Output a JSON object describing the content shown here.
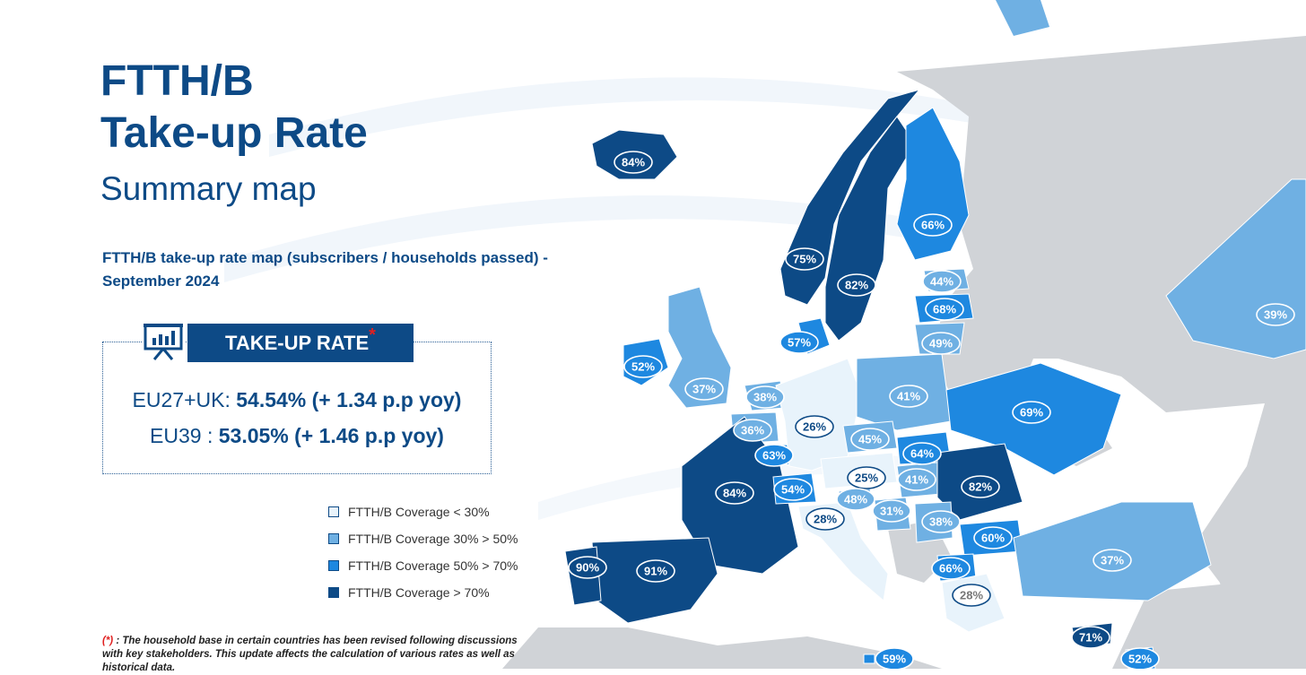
{
  "title_line1": "FTTH/B",
  "title_line2": "Take-up Rate",
  "subtitle": "Summary map",
  "description": "FTTH/B take-up rate map (subscribers / households passed) - September 2024",
  "takeup_box": {
    "header": "TAKE-UP RATE",
    "asterisk": "*",
    "eu27_label": "EU27+UK: ",
    "eu27_value": "54.54% (+ 1.34 p.p yoy)",
    "eu39_label": "EU39 : ",
    "eu39_value": "53.05% (+ 1.46 p.p yoy)"
  },
  "legend": [
    {
      "label": "FTTH/B Coverage < 30%",
      "color": "#e8f3fb"
    },
    {
      "label": "FTTH/B Coverage 30% > 50%",
      "color": "#6fb0e3"
    },
    {
      "label": "FTTH/B Coverage 50% > 70%",
      "color": "#1e88e0"
    },
    {
      "label": "FTTH/B Coverage > 70%",
      "color": "#0d4a86"
    }
  ],
  "footnote_marker": "(*)",
  "footnote_text": " : The household base in certain countries has been revised following discussions with key stakeholders. This update affects the calculation of various rates as well as historical data.",
  "colors": {
    "class0": "#e8f3fb",
    "class1": "#6fb0e3",
    "class2": "#1e88e0",
    "class3": "#0d4a86",
    "none": "#d0d3d7",
    "sea": "#ffffff"
  },
  "countries": [
    {
      "name": "Iceland",
      "rate": "84%",
      "class": 3
    },
    {
      "name": "Norway",
      "rate": "75%",
      "class": 3
    },
    {
      "name": "Sweden",
      "rate": "82%",
      "class": 3
    },
    {
      "name": "Finland",
      "rate": "66%",
      "class": 2
    },
    {
      "name": "Estonia",
      "rate": "44%",
      "class": 1
    },
    {
      "name": "Latvia",
      "rate": "68%",
      "class": 2
    },
    {
      "name": "Lithuania",
      "rate": "49%",
      "class": 1
    },
    {
      "name": "Denmark",
      "rate": "57%",
      "class": 2
    },
    {
      "name": "Ireland",
      "rate": "52%",
      "class": 2
    },
    {
      "name": "United Kingdom",
      "rate": "37%",
      "class": 1
    },
    {
      "name": "Netherlands",
      "rate": "38%",
      "class": 1
    },
    {
      "name": "Belgium",
      "rate": "36%",
      "class": 1
    },
    {
      "name": "Luxembourg",
      "rate": "63%",
      "class": 2
    },
    {
      "name": "Germany",
      "rate": "26%",
      "class": 0
    },
    {
      "name": "Poland",
      "rate": "41%",
      "class": 1
    },
    {
      "name": "Czechia",
      "rate": "45%",
      "class": 1
    },
    {
      "name": "Slovakia",
      "rate": "64%",
      "class": 2
    },
    {
      "name": "Austria",
      "rate": "25%",
      "class": 0
    },
    {
      "name": "Hungary",
      "rate": "41%",
      "class": 1
    },
    {
      "name": "Ukraine",
      "rate": "69%",
      "class": 2
    },
    {
      "name": "Romania",
      "rate": "82%",
      "class": 3
    },
    {
      "name": "France",
      "rate": "84%",
      "class": 3
    },
    {
      "name": "Switzerland",
      "rate": "54%",
      "class": 2
    },
    {
      "name": "Slovenia",
      "rate": "48%",
      "class": 1
    },
    {
      "name": "Croatia",
      "rate": "31%",
      "class": 1
    },
    {
      "name": "Serbia",
      "rate": "38%",
      "class": 1
    },
    {
      "name": "Bulgaria",
      "rate": "60%",
      "class": 2
    },
    {
      "name": "North Macedonia",
      "rate": "66%",
      "class": 2
    },
    {
      "name": "Italy",
      "rate": "28%",
      "class": 0
    },
    {
      "name": "Greece",
      "rate": "28%",
      "class": 0
    },
    {
      "name": "Spain",
      "rate": "91%",
      "class": 3
    },
    {
      "name": "Portugal",
      "rate": "90%",
      "class": 3
    },
    {
      "name": "Turkey",
      "rate": "37%",
      "class": 1
    },
    {
      "name": "Russia",
      "rate": "39%",
      "class": 1
    },
    {
      "name": "Cyprus",
      "rate": "71%",
      "class": 3
    },
    {
      "name": "Malta",
      "rate": "59%",
      "class": 2
    },
    {
      "name": "Israel",
      "rate": "52%",
      "class": 2
    }
  ]
}
